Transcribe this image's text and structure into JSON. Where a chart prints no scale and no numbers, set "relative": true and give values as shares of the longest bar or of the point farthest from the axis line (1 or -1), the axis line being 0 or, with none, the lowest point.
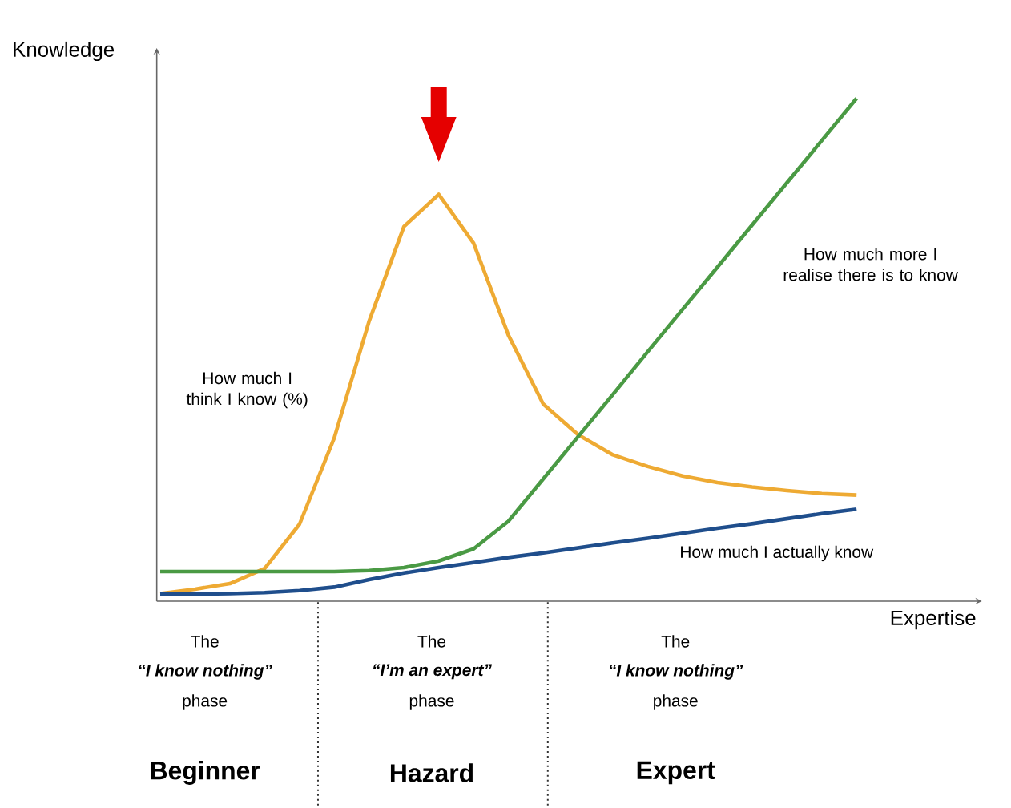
{
  "chart_data": {
    "type": "line",
    "relative": true,
    "xlabel": "Expertise",
    "ylabel": "Knowledge",
    "categories": [
      null,
      null,
      null,
      null,
      null,
      null,
      null,
      null,
      null,
      null,
      null,
      null,
      null,
      null,
      null,
      null,
      null,
      null,
      null,
      null,
      null
    ],
    "series": [
      {
        "name": "How much I think I know (%)",
        "color": "#eeaa33",
        "values": [
          0.015,
          0.024,
          0.035,
          0.065,
          0.153,
          0.325,
          0.557,
          0.745,
          0.809,
          0.712,
          0.529,
          0.392,
          0.331,
          0.291,
          0.268,
          0.249,
          0.236,
          0.227,
          0.22,
          0.214,
          0.211
        ]
      },
      {
        "name": "How much more I realise there is to know",
        "color": "#4a9a44",
        "values": [
          0.059,
          0.059,
          0.059,
          0.059,
          0.059,
          0.059,
          0.061,
          0.067,
          0.08,
          0.104,
          0.159,
          0.243,
          0.327,
          0.411,
          0.496,
          0.58,
          0.664,
          0.748,
          0.832,
          0.916,
          1.0
        ]
      },
      {
        "name": "How much I actually know",
        "color": "#1f4e8c",
        "values": [
          0.014,
          0.014,
          0.015,
          0.017,
          0.021,
          0.028,
          0.043,
          0.056,
          0.067,
          0.077,
          0.087,
          0.096,
          0.106,
          0.116,
          0.125,
          0.135,
          0.145,
          0.154,
          0.164,
          0.174,
          0.183
        ]
      }
    ],
    "annotations": [
      "The",
      "“I know nothing”",
      "phase",
      "The",
      "“I’m an expert”",
      "phase",
      "The",
      "“I know nothing”",
      "phase",
      "Beginner",
      "Hazard",
      "Expert"
    ]
  }
}
